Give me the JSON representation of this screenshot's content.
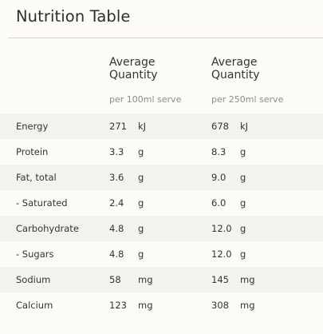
{
  "title": "Nutrition Table",
  "columns": [
    {
      "heading_line1": "Average",
      "heading_line2": "Quantity",
      "serving": "per 100ml serve"
    },
    {
      "heading_line1": "Average",
      "heading_line2": "Quantity",
      "serving": "per 250ml serve"
    }
  ],
  "rows": [
    {
      "name": "Energy",
      "v1": "271",
      "u1": "kJ",
      "v2": "678",
      "u2": "kJ"
    },
    {
      "name": "Protein",
      "v1": "3.3",
      "u1": "g",
      "v2": "8.3",
      "u2": "g"
    },
    {
      "name": "Fat, total",
      "v1": "3.6",
      "u1": "g",
      "v2": "9.0",
      "u2": "g"
    },
    {
      "name": "- Saturated",
      "v1": "2.4",
      "u1": "g",
      "v2": "6.0",
      "u2": "g"
    },
    {
      "name": "Carbohydrate",
      "v1": "4.8",
      "u1": "g",
      "v2": "12.0",
      "u2": "g"
    },
    {
      "name": "- Sugars",
      "v1": "4.8",
      "u1": "g",
      "v2": "12.0",
      "u2": "g"
    },
    {
      "name": "Sodium",
      "v1": "58",
      "u1": "mg",
      "v2": "145",
      "u2": "mg"
    },
    {
      "name": "Calcium",
      "v1": "123",
      "u1": "mg",
      "v2": "308",
      "u2": "mg"
    }
  ]
}
